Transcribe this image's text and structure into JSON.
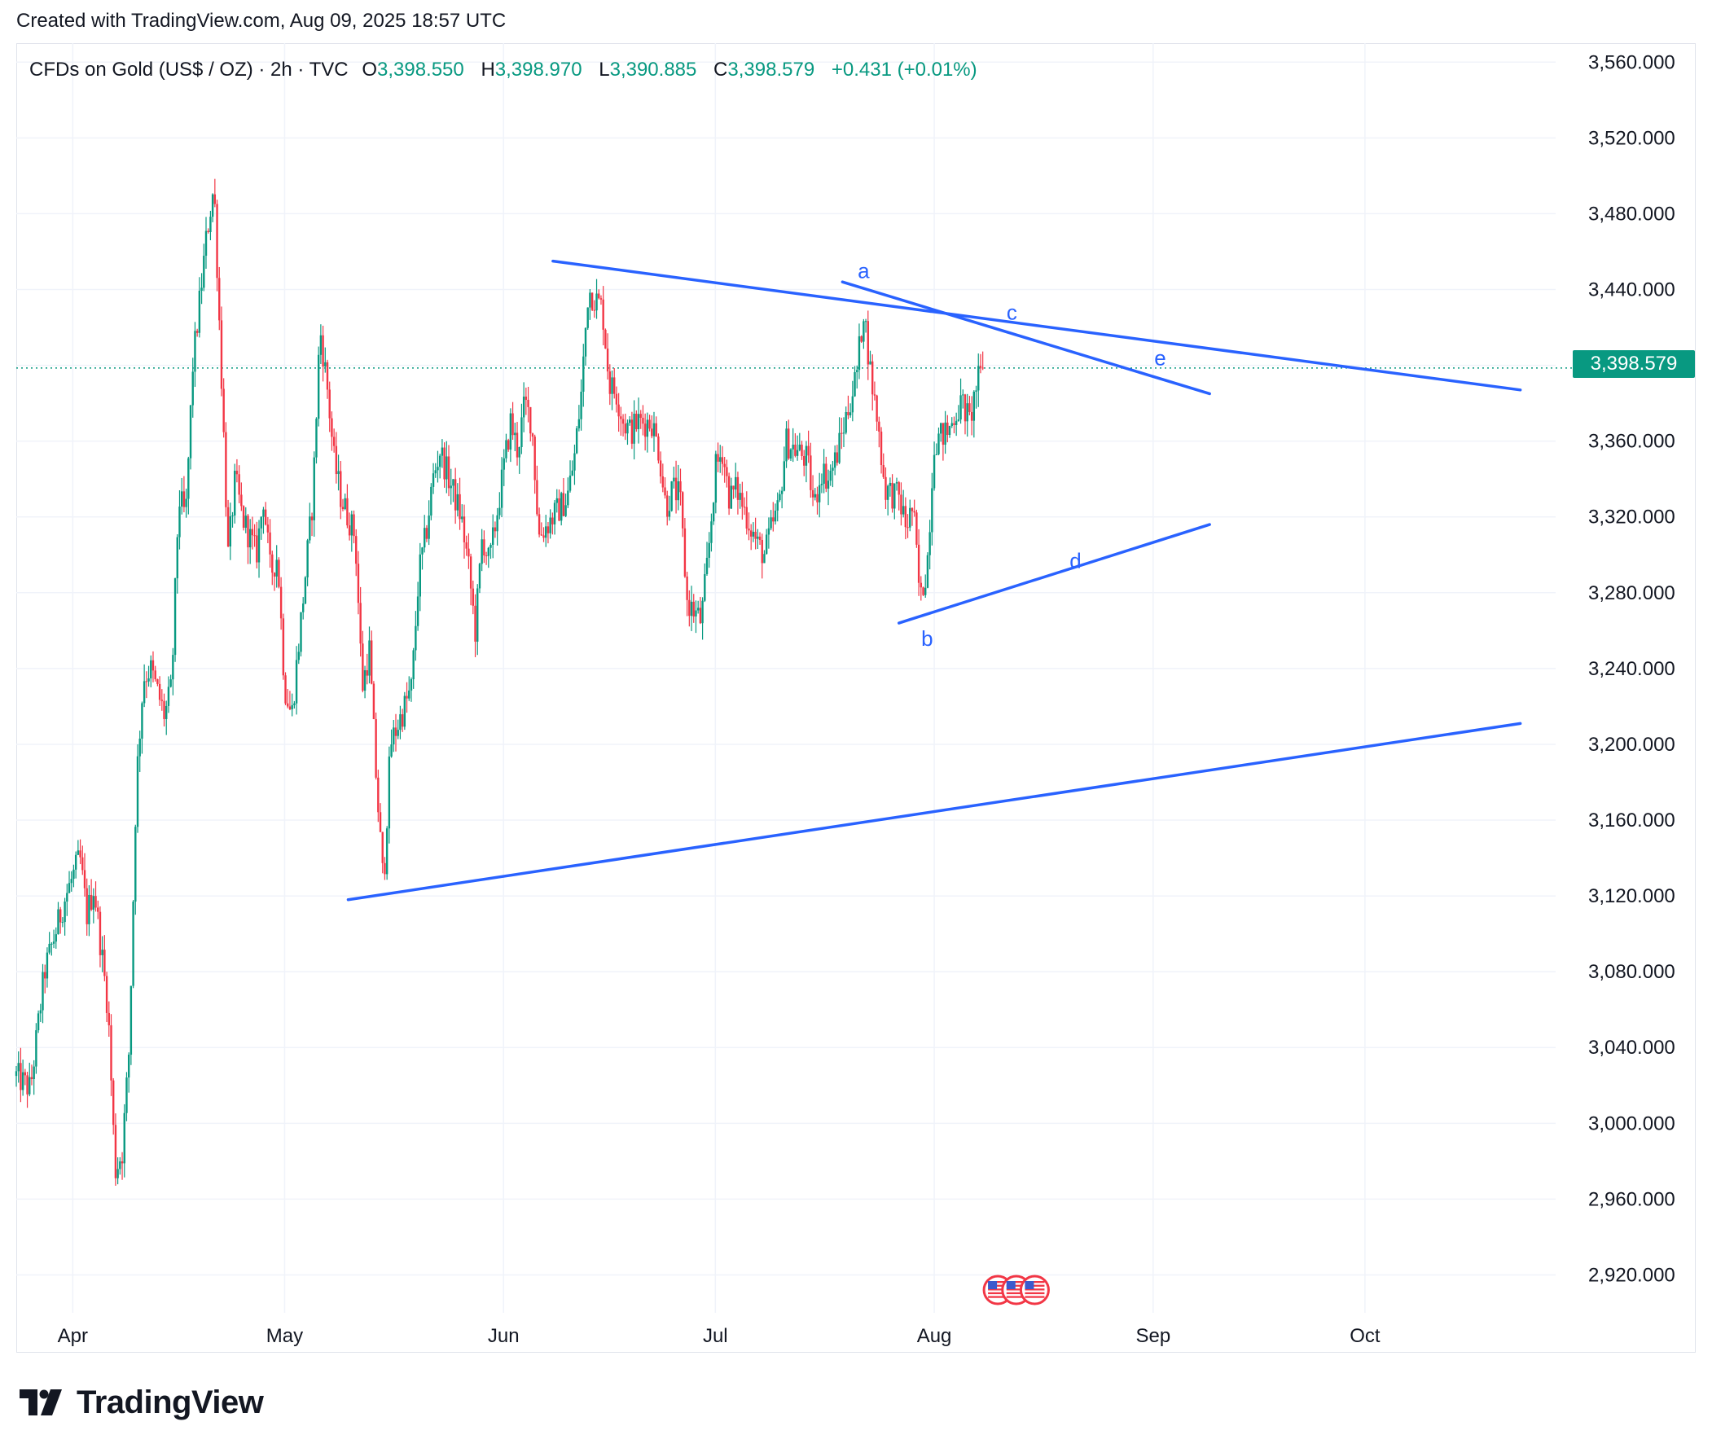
{
  "header": {
    "credit": "Created with TradingView.com, Aug 09, 2025 18:57 UTC"
  },
  "legend": {
    "symbol": "CFDs on Gold (US$ / OZ) · 2h · TVC",
    "open_label": "O",
    "open": "3,398.550",
    "high_label": "H",
    "high": "3,398.970",
    "low_label": "L",
    "low": "3,390.885",
    "close_label": "C",
    "close": "3,398.579",
    "change": "+0.431 (+0.01%)"
  },
  "price_tag": "3,398.579",
  "brand": {
    "name": "TradingView"
  },
  "colors": {
    "up": "#089981",
    "down": "#f23645",
    "line": "#2962ff",
    "grid": "#f0f3fa"
  },
  "chart_data": {
    "type": "candlestick",
    "title": "CFDs on Gold (US$ / OZ) · 2h · TVC",
    "ylim": [
      2900,
      3570
    ],
    "xlim": [
      "2025-03-24",
      "2025-10-28"
    ],
    "y_ticks": [
      "3,560.000",
      "3,520.000",
      "3,480.000",
      "3,440.000",
      "3,400.000",
      "3,360.000",
      "3,320.000",
      "3,280.000",
      "3,240.000",
      "3,200.000",
      "3,160.000",
      "3,120.000",
      "3,080.000",
      "3,040.000",
      "3,000.000",
      "2,960.000",
      "2,920.000"
    ],
    "y_tick_values": [
      3560,
      3520,
      3480,
      3440,
      3400,
      3360,
      3320,
      3280,
      3240,
      3200,
      3160,
      3120,
      3080,
      3040,
      3000,
      2960,
      2920
    ],
    "x_ticks": [
      {
        "label": "Apr",
        "date": "2025-04-01"
      },
      {
        "label": "May",
        "date": "2025-05-01"
      },
      {
        "label": "Jun",
        "date": "2025-06-01"
      },
      {
        "label": "Jul",
        "date": "2025-07-01"
      },
      {
        "label": "Aug",
        "date": "2025-08-01"
      },
      {
        "label": "Sep",
        "date": "2025-09-01"
      },
      {
        "label": "Oct",
        "date": "2025-10-01"
      }
    ],
    "last_price": 3398.579,
    "price_path": [
      [
        "2025-03-24",
        3025
      ],
      [
        "2025-03-26",
        3018
      ],
      [
        "2025-03-28",
        3080
      ],
      [
        "2025-03-31",
        3120
      ],
      [
        "2025-04-02",
        3140
      ],
      [
        "2025-04-03",
        3110
      ],
      [
        "2025-04-04",
        3125
      ],
      [
        "2025-04-06",
        3060
      ],
      [
        "2025-04-07",
        2975
      ],
      [
        "2025-04-08",
        2985
      ],
      [
        "2025-04-09",
        3040
      ],
      [
        "2025-04-10",
        3180
      ],
      [
        "2025-04-11",
        3235
      ],
      [
        "2025-04-12",
        3240
      ],
      [
        "2025-04-14",
        3215
      ],
      [
        "2025-04-15",
        3230
      ],
      [
        "2025-04-16",
        3330
      ],
      [
        "2025-04-17",
        3320
      ],
      [
        "2025-04-18",
        3400
      ],
      [
        "2025-04-20",
        3470
      ],
      [
        "2025-04-21",
        3495
      ],
      [
        "2025-04-22",
        3400
      ],
      [
        "2025-04-23",
        3300
      ],
      [
        "2025-04-24",
        3340
      ],
      [
        "2025-04-25",
        3320
      ],
      [
        "2025-04-27",
        3300
      ],
      [
        "2025-04-28",
        3330
      ],
      [
        "2025-04-29",
        3290
      ],
      [
        "2025-04-30",
        3300
      ],
      [
        "2025-05-01",
        3230
      ],
      [
        "2025-05-02",
        3215
      ],
      [
        "2025-05-05",
        3330
      ],
      [
        "2025-05-06",
        3420
      ],
      [
        "2025-05-07",
        3390
      ],
      [
        "2025-05-08",
        3350
      ],
      [
        "2025-05-09",
        3330
      ],
      [
        "2025-05-11",
        3310
      ],
      [
        "2025-05-12",
        3230
      ],
      [
        "2025-05-13",
        3250
      ],
      [
        "2025-05-14",
        3180
      ],
      [
        "2025-05-15",
        3125
      ],
      [
        "2025-05-16",
        3200
      ],
      [
        "2025-05-19",
        3230
      ],
      [
        "2025-05-20",
        3290
      ],
      [
        "2025-05-21",
        3310
      ],
      [
        "2025-05-22",
        3340
      ],
      [
        "2025-05-23",
        3355
      ],
      [
        "2025-05-26",
        3320
      ],
      [
        "2025-05-27",
        3295
      ],
      [
        "2025-05-28",
        3260
      ],
      [
        "2025-05-29",
        3310
      ],
      [
        "2025-05-30",
        3295
      ],
      [
        "2025-06-02",
        3370
      ],
      [
        "2025-06-03",
        3355
      ],
      [
        "2025-06-04",
        3380
      ],
      [
        "2025-06-05",
        3370
      ],
      [
        "2025-06-06",
        3310
      ],
      [
        "2025-06-09",
        3325
      ],
      [
        "2025-06-10",
        3330
      ],
      [
        "2025-06-11",
        3350
      ],
      [
        "2025-06-12",
        3385
      ],
      [
        "2025-06-13",
        3440
      ],
      [
        "2025-06-15",
        3430
      ],
      [
        "2025-06-16",
        3390
      ],
      [
        "2025-06-17",
        3385
      ],
      [
        "2025-06-18",
        3370
      ],
      [
        "2025-06-19",
        3365
      ],
      [
        "2025-06-20",
        3370
      ],
      [
        "2025-06-22",
        3370
      ],
      [
        "2025-06-23",
        3355
      ],
      [
        "2025-06-24",
        3325
      ],
      [
        "2025-06-25",
        3335
      ],
      [
        "2025-06-26",
        3330
      ],
      [
        "2025-06-27",
        3275
      ],
      [
        "2025-06-29",
        3265
      ],
      [
        "2025-06-30",
        3300
      ],
      [
        "2025-07-01",
        3345
      ],
      [
        "2025-07-02",
        3355
      ],
      [
        "2025-07-03",
        3330
      ],
      [
        "2025-07-04",
        3335
      ],
      [
        "2025-07-07",
        3305
      ],
      [
        "2025-07-08",
        3300
      ],
      [
        "2025-07-09",
        3315
      ],
      [
        "2025-07-10",
        3325
      ],
      [
        "2025-07-11",
        3360
      ],
      [
        "2025-07-14",
        3350
      ],
      [
        "2025-07-15",
        3325
      ],
      [
        "2025-07-16",
        3345
      ],
      [
        "2025-07-17",
        3340
      ],
      [
        "2025-07-18",
        3350
      ],
      [
        "2025-07-20",
        3380
      ],
      [
        "2025-07-21",
        3395
      ],
      [
        "2025-07-22",
        3430
      ],
      [
        "2025-07-23",
        3395
      ],
      [
        "2025-07-24",
        3370
      ],
      [
        "2025-07-25",
        3335
      ],
      [
        "2025-07-27",
        3330
      ],
      [
        "2025-07-28",
        3315
      ],
      [
        "2025-07-29",
        3325
      ],
      [
        "2025-07-30",
        3275
      ],
      [
        "2025-07-31",
        3295
      ],
      [
        "2025-08-01",
        3360
      ],
      [
        "2025-08-03",
        3365
      ],
      [
        "2025-08-04",
        3375
      ],
      [
        "2025-08-05",
        3380
      ],
      [
        "2025-08-06",
        3370
      ],
      [
        "2025-08-07",
        3390
      ],
      [
        "2025-08-08",
        3398.579
      ]
    ],
    "trendlines": [
      {
        "name": "upper-boundary",
        "from": [
          "2025-06-08",
          3455
        ],
        "to": [
          "2025-10-23",
          3387
        ]
      },
      {
        "name": "lower-boundary",
        "from": [
          "2025-05-10",
          3118
        ],
        "to": [
          "2025-10-23",
          3211
        ]
      },
      {
        "name": "a-e-line",
        "from": [
          "2025-07-19",
          3444
        ],
        "to": [
          "2025-09-09",
          3385
        ]
      },
      {
        "name": "b-d-line",
        "from": [
          "2025-07-27",
          3264
        ],
        "to": [
          "2025-09-09",
          3316
        ]
      }
    ],
    "wave_labels": [
      {
        "text": "a",
        "date": "2025-07-22",
        "price": 3446
      },
      {
        "text": "b",
        "date": "2025-07-31",
        "price": 3252
      },
      {
        "text": "c",
        "date": "2025-08-12",
        "price": 3424
      },
      {
        "text": "d",
        "date": "2025-08-21",
        "price": 3293
      },
      {
        "text": "e",
        "date": "2025-09-02",
        "price": 3400
      }
    ],
    "grid": true,
    "last_price_line": true,
    "events": [
      {
        "icon": "us-flag-icon",
        "date": "2025-08-10"
      },
      {
        "icon": "us-flag-icon",
        "date": "2025-08-11"
      },
      {
        "icon": "us-flag-icon",
        "date": "2025-08-12"
      }
    ]
  }
}
